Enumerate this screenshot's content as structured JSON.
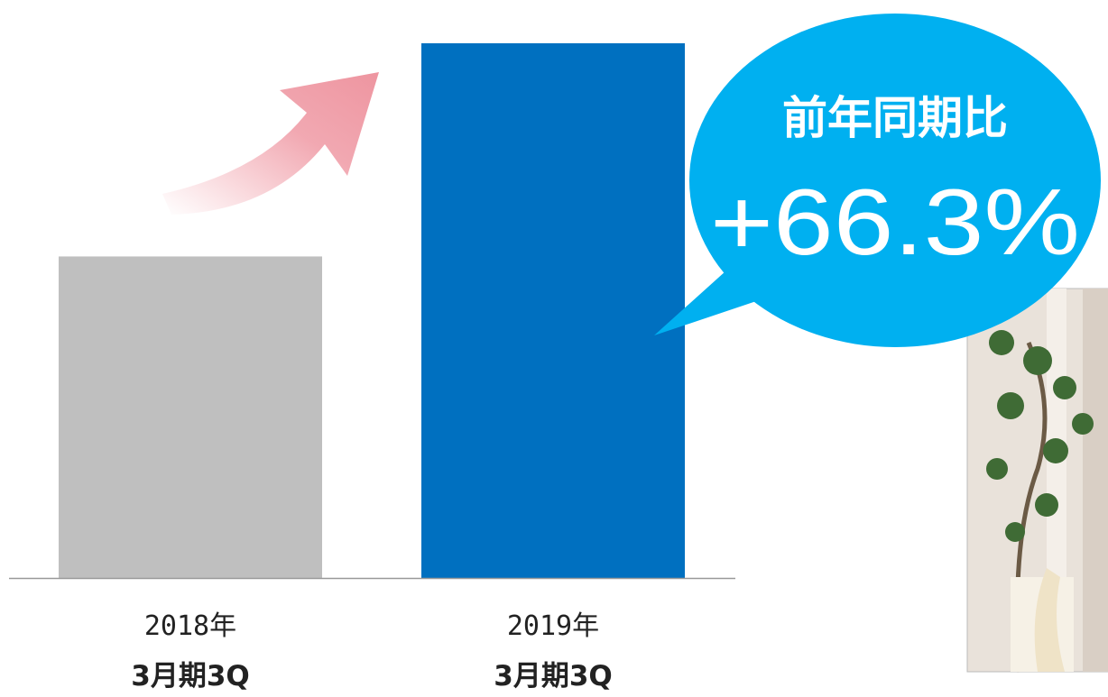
{
  "chart_data": {
    "type": "bar",
    "categories": [
      [
        "2018年",
        "3月期3Q"
      ],
      [
        "2019年",
        "3月期3Q"
      ]
    ],
    "values": [
      100,
      166.3
    ],
    "colors": [
      "#bfbfbf",
      "#0070c0"
    ],
    "annotation": {
      "title": "前年同期比",
      "change": {
        "value": 66.3,
        "label": "+66.3%"
      }
    }
  }
}
